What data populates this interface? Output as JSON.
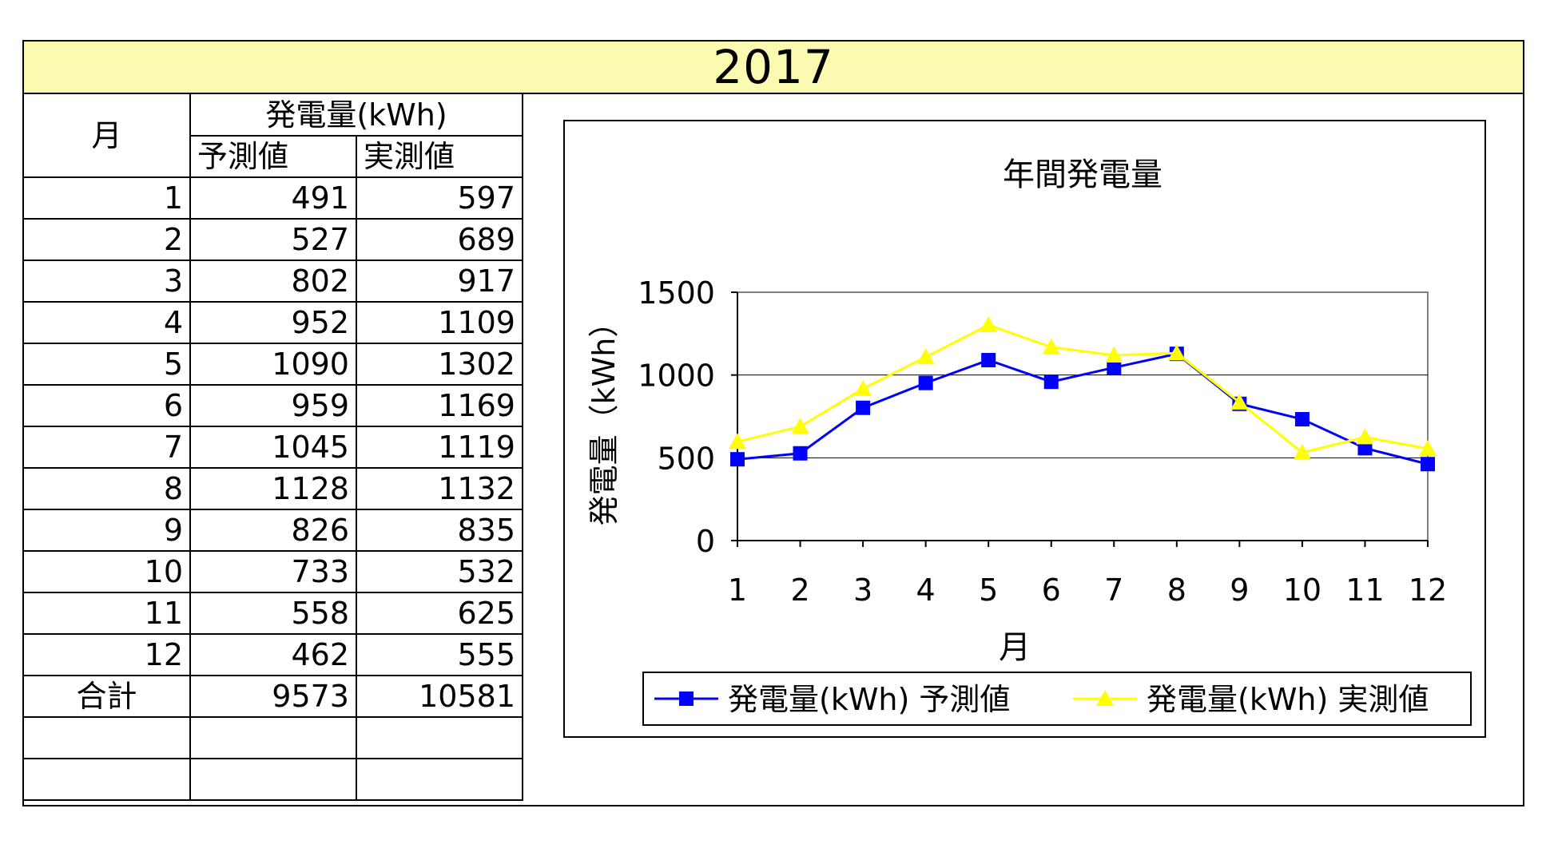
{
  "year_title": "2017",
  "table": {
    "month_header": "月",
    "group_header": "発電量(kWh)",
    "pred_header": "予測値",
    "act_header": "実測値",
    "rows": [
      {
        "month": "1",
        "pred": "491",
        "act": "597"
      },
      {
        "month": "2",
        "pred": "527",
        "act": "689"
      },
      {
        "month": "3",
        "pred": "802",
        "act": "917"
      },
      {
        "month": "4",
        "pred": "952",
        "act": "1109"
      },
      {
        "month": "5",
        "pred": "1090",
        "act": "1302"
      },
      {
        "month": "6",
        "pred": "959",
        "act": "1169"
      },
      {
        "month": "7",
        "pred": "1045",
        "act": "1119"
      },
      {
        "month": "8",
        "pred": "1128",
        "act": "1132"
      },
      {
        "month": "9",
        "pred": "826",
        "act": "835"
      },
      {
        "month": "10",
        "pred": "733",
        "act": "532"
      },
      {
        "month": "11",
        "pred": "558",
        "act": "625"
      },
      {
        "month": "12",
        "pred": "462",
        "act": "555"
      }
    ],
    "total_label": "合計",
    "total_pred": "9573",
    "total_act": "10581"
  },
  "chart_data": {
    "type": "line",
    "title": "年間発電量",
    "xlabel": "月",
    "ylabel": "発電量（kWh）",
    "categories": [
      "1",
      "2",
      "3",
      "4",
      "5",
      "6",
      "7",
      "8",
      "9",
      "10",
      "11",
      "12"
    ],
    "ylim": [
      0,
      1500
    ],
    "yticks": [
      0,
      500,
      1000,
      1500
    ],
    "grid": true,
    "legend_position": "bottom",
    "series": [
      {
        "name": "発電量(kWh) 予測値",
        "color": "#0000ff",
        "marker": "square",
        "values": [
          491,
          527,
          802,
          952,
          1090,
          959,
          1045,
          1128,
          826,
          733,
          558,
          462
        ]
      },
      {
        "name": "発電量(kWh) 実測値",
        "color": "#ffff00",
        "marker": "triangle",
        "values": [
          597,
          689,
          917,
          1109,
          1302,
          1169,
          1119,
          1132,
          835,
          532,
          625,
          555
        ]
      }
    ]
  }
}
